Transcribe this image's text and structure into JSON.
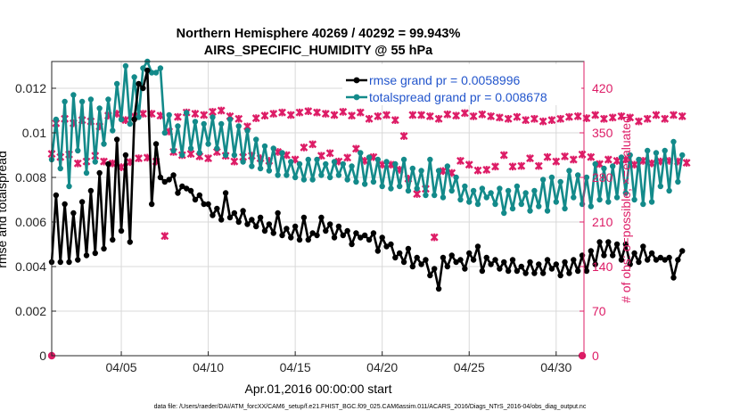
{
  "chart_data": {
    "type": "line",
    "title": [
      "Northern Hemisphere 40269 / 40292 = 99.943%",
      "AIRS_SPECIFIC_HUMIDITY @ 55 hPa"
    ],
    "xlabel": "Apr.01,2016 00:00:00 start",
    "ylabel_left": "rmse and totalspread",
    "ylabel_right": "# of obs: o=possible; ×=evaluated",
    "xlim": [
      1,
      31.6
    ],
    "ylim_left": [
      0,
      0.0132
    ],
    "ylim_right": [
      0,
      462
    ],
    "x_ticks": [
      5,
      10,
      15,
      20,
      25,
      30
    ],
    "x_tick_labels": [
      "04/05",
      "04/10",
      "04/15",
      "04/20",
      "04/25",
      "04/30"
    ],
    "y_left_ticks": [
      0,
      0.002,
      0.004,
      0.006,
      0.008,
      0.01,
      0.012
    ],
    "y_left_tick_labels": [
      "0",
      "0.002",
      "0.004",
      "0.006",
      "0.008",
      "0.01",
      "0.012"
    ],
    "y_right_ticks": [
      0,
      70,
      140,
      210,
      280,
      350,
      420
    ],
    "y_right_tick_labels": [
      "0",
      "70",
      "140",
      "210",
      "280",
      "350",
      "420"
    ],
    "legend_location": "top-right",
    "x_step_days": 0.25,
    "x_start": 1.0,
    "series": [
      {
        "name": "rmse grand pr = 0.0058996",
        "color": "#000000",
        "axis": "left",
        "values": [
          0.0042,
          0.0072,
          0.0042,
          0.0068,
          0.0042,
          0.0064,
          0.0043,
          0.0069,
          0.0045,
          0.0074,
          0.0046,
          0.0082,
          0.0048,
          0.0086,
          0.0052,
          0.0097,
          0.0056,
          0.009,
          0.0051,
          0.0106,
          0.0122,
          0.012,
          0.0128,
          0.0068,
          0.0095,
          0.008,
          0.0078,
          0.0079,
          0.0081,
          0.0073,
          0.0076,
          0.0075,
          0.0074,
          0.007,
          0.0072,
          0.0068,
          0.0068,
          0.0063,
          0.0066,
          0.0061,
          0.0073,
          0.0062,
          0.0064,
          0.006,
          0.0065,
          0.0059,
          0.0061,
          0.0058,
          0.0062,
          0.0056,
          0.0059,
          0.0055,
          0.0064,
          0.0054,
          0.0057,
          0.0053,
          0.0058,
          0.0052,
          0.0062,
          0.0052,
          0.0055,
          0.0054,
          0.0062,
          0.0056,
          0.0059,
          0.0053,
          0.0058,
          0.0054,
          0.0056,
          0.005,
          0.0055,
          0.0053,
          0.0054,
          0.0052,
          0.0055,
          0.0047,
          0.0053,
          0.0049,
          0.005,
          0.0044,
          0.0046,
          0.0042,
          0.0048,
          0.004,
          0.0044,
          0.0041,
          0.0043,
          0.0036,
          0.0039,
          0.003,
          0.0044,
          0.004,
          0.0045,
          0.0042,
          0.0043,
          0.0039,
          0.0046,
          0.0043,
          0.0049,
          0.0038,
          0.0044,
          0.0041,
          0.0043,
          0.0039,
          0.0042,
          0.0038,
          0.0043,
          0.0038,
          0.004,
          0.0037,
          0.0042,
          0.0037,
          0.0041,
          0.0037,
          0.0043,
          0.0039,
          0.0041,
          0.0036,
          0.0042,
          0.0037,
          0.0043,
          0.0038,
          0.0045,
          0.0038,
          0.0047,
          0.0041,
          0.0051,
          0.0045,
          0.0051,
          0.0045,
          0.005,
          0.0043,
          0.005,
          0.0041,
          0.0046,
          0.0042,
          0.0049,
          0.0043,
          0.0046,
          0.0043,
          0.0044,
          0.0043,
          0.0044,
          0.0035,
          0.0043,
          0.0047
        ]
      },
      {
        "name": "totalspread grand pr = 0.008678",
        "color": "#138a8a",
        "axis": "left",
        "values": [
          0.0088,
          0.0106,
          0.0084,
          0.0114,
          0.0076,
          0.0117,
          0.0092,
          0.0114,
          0.0082,
          0.0115,
          0.0087,
          0.0111,
          0.0095,
          0.0115,
          0.0101,
          0.0122,
          0.0106,
          0.013,
          0.0104,
          0.0125,
          0.0107,
          0.0129,
          0.0132,
          0.0127,
          0.0127,
          0.0129,
          0.01,
          0.0108,
          0.0092,
          0.0103,
          0.009,
          0.0109,
          0.0093,
          0.0105,
          0.0091,
          0.0104,
          0.0095,
          0.0107,
          0.0093,
          0.0104,
          0.009,
          0.0106,
          0.009,
          0.0103,
          0.0087,
          0.0101,
          0.0085,
          0.0097,
          0.0084,
          0.0094,
          0.0083,
          0.0093,
          0.0081,
          0.0091,
          0.0081,
          0.0087,
          0.008,
          0.0086,
          0.0079,
          0.0088,
          0.0079,
          0.0088,
          0.0081,
          0.0086,
          0.008,
          0.0087,
          0.0081,
          0.0086,
          0.0079,
          0.0085,
          0.0078,
          0.0091,
          0.0077,
          0.0089,
          0.0078,
          0.0088,
          0.0076,
          0.0087,
          0.0075,
          0.0086,
          0.0076,
          0.0088,
          0.0074,
          0.0084,
          0.0075,
          0.0083,
          0.0072,
          0.0088,
          0.0072,
          0.0083,
          0.0071,
          0.0085,
          0.0074,
          0.008,
          0.007,
          0.0076,
          0.0069,
          0.0074,
          0.0068,
          0.0075,
          0.0071,
          0.0073,
          0.0068,
          0.0075,
          0.0064,
          0.0074,
          0.0066,
          0.0076,
          0.0068,
          0.0073,
          0.0065,
          0.0074,
          0.0067,
          0.0079,
          0.0065,
          0.008,
          0.0069,
          0.0078,
          0.0066,
          0.0083,
          0.0071,
          0.0081,
          0.0068,
          0.008,
          0.0067,
          0.0086,
          0.007,
          0.0084,
          0.0069,
          0.0085,
          0.0071,
          0.0089,
          0.0073,
          0.009,
          0.007,
          0.0088,
          0.0068,
          0.0092,
          0.0069,
          0.0091,
          0.0076,
          0.0092,
          0.0074,
          0.0096,
          0.0078,
          0.009
        ]
      },
      {
        "name": "# of obs possible",
        "color": "#dd1c66",
        "axis": "right",
        "marker": "circle",
        "x": [
          1.0,
          31.5
        ],
        "values": [
          0,
          0
        ]
      },
      {
        "name": "# of obs evaluated",
        "color": "#dd1c66",
        "axis": "right",
        "marker": "x",
        "values": [
          317,
          365,
          312,
          372,
          316,
          365,
          302,
          370,
          305,
          368,
          314,
          360,
          305,
          377,
          302,
          380,
          296,
          370,
          304,
          376,
          310,
          380,
          311,
          380,
          305,
          377,
          188,
          352,
          320,
          375,
          315,
          382,
          317,
          380,
          313,
          378,
          310,
          383,
          320,
          385,
          314,
          376,
          305,
          372,
          312,
          360,
          314,
          373,
          310,
          377,
          306,
          380,
          320,
          382,
          315,
          378,
          308,
          382,
          327,
          384,
          332,
          382,
          314,
          380,
          318,
          378,
          305,
          383,
          311,
          377,
          325,
          382,
          306,
          372,
          312,
          376,
          300,
          378,
          300,
          370,
          292,
          345,
          278,
          378,
          254,
          378,
          262,
          376,
          186,
          372,
          290,
          379,
          287,
          377,
          306,
          381,
          300,
          376,
          291,
          379,
          292,
          376,
          297,
          374,
          315,
          372,
          297,
          375,
          298,
          370,
          310,
          372,
          298,
          368,
          312,
          370,
          305,
          372,
          313,
          375,
          308,
          376,
          316,
          373,
          312,
          378,
          301,
          372,
          308,
          374,
          306,
          376,
          308,
          374,
          300,
          368,
          306,
          372,
          302,
          378,
          305,
          372,
          306,
          378,
          305,
          376,
          303
        ]
      }
    ],
    "legend": [
      {
        "label": "rmse grand pr = 0.0058996",
        "color": "#000000",
        "text_color": "#2255cc"
      },
      {
        "label": "totalspread grand pr = 0.008678",
        "color": "#138a8a",
        "text_color": "#2255cc"
      }
    ]
  },
  "footer": "data file: /Users/raeder/DAI/ATM_forcXX/CAM6_setup/f.e21.FHIST_BGC.f09_025.CAM6assim.011/ACARS_2016/Diags_NTrS_2016-04/obs_diag_output.nc"
}
